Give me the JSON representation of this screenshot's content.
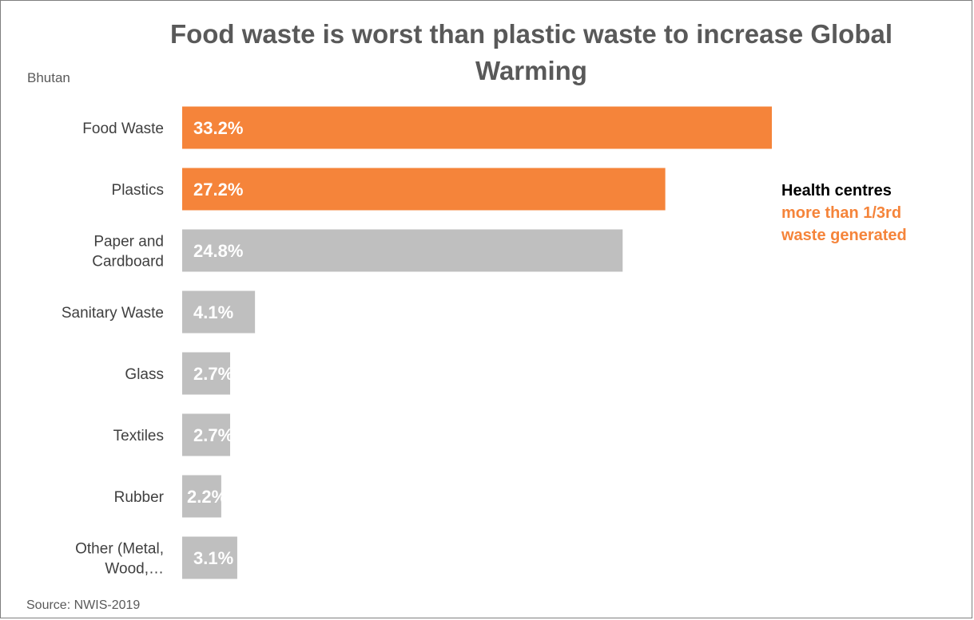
{
  "chart_data": {
    "type": "bar",
    "orientation": "horizontal",
    "title": "Food waste is worst than plastic waste to increase Global Warming",
    "subtitle": "Bhutan",
    "categories": [
      "Food Waste",
      "Plastics",
      "Paper and Cardboard",
      "Sanitary Waste",
      "Glass",
      "Textiles",
      "Rubber",
      "Other (Metal, Wood,…"
    ],
    "category_lines": [
      [
        "Food Waste"
      ],
      [
        "Plastics"
      ],
      [
        "Paper and",
        "Cardboard"
      ],
      [
        "Sanitary Waste"
      ],
      [
        "Glass"
      ],
      [
        "Textiles"
      ],
      [
        "Rubber"
      ],
      [
        "Other (Metal,",
        "Wood,…"
      ]
    ],
    "values": [
      33.2,
      27.2,
      24.8,
      4.1,
      2.7,
      2.7,
      2.2,
      3.1
    ],
    "value_labels": [
      "33.2%",
      "27.2%",
      "24.8%",
      "4.1%",
      "2.7%",
      "2.7%",
      "2.2%",
      "3.1%"
    ],
    "highlighted": [
      true,
      true,
      false,
      false,
      false,
      false,
      false,
      false
    ],
    "xlim": [
      0,
      33.2
    ],
    "grid": false,
    "colors": {
      "highlight": "#f5843a",
      "default": "#bfbfbf"
    },
    "source": "Source: NWIS-2019",
    "annotation": [
      "Health centres",
      "more than 1/3rd",
      "waste  generated"
    ]
  }
}
